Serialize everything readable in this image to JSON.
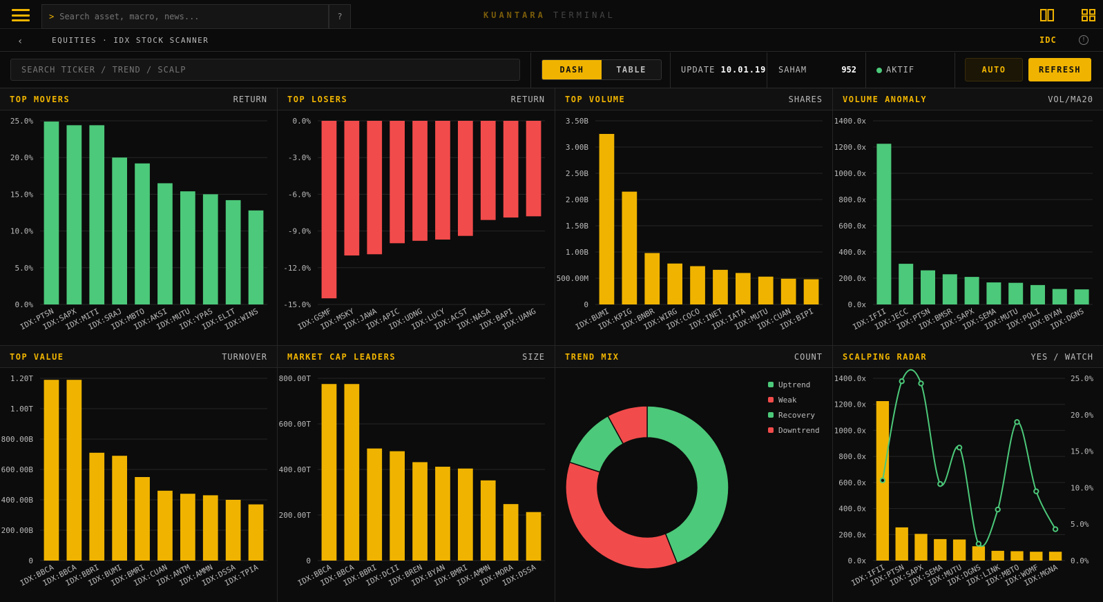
{
  "topbar": {
    "search_prompt": ">",
    "search_placeholder": "Search asset, macro, news...",
    "help_label": "?",
    "brand_primary": "KUANTARA",
    "brand_secondary": "TERMINAL"
  },
  "breadcrumb": {
    "back": "‹",
    "path": "EQUITIES · IDX STOCK SCANNER",
    "region": "IDC",
    "info": "!"
  },
  "controls": {
    "search_placeholder": "SEARCH TICKER / TREND / SCALP",
    "view_tabs": [
      "DASH",
      "TABLE"
    ],
    "update_label": "UPDATE",
    "update_value": "10.01.19",
    "saham_label": "SAHAM",
    "saham_value": "952",
    "status_label": "AKTIF",
    "auto_label": "AUTO",
    "refresh_label": "REFRESH"
  },
  "colors": {
    "accent": "#f0b400",
    "up": "#4cc97a",
    "down": "#f24b4b"
  },
  "panels": [
    {
      "title": "TOP MOVERS",
      "tag": "RETURN"
    },
    {
      "title": "TOP LOSERS",
      "tag": "RETURN"
    },
    {
      "title": "TOP VOLUME",
      "tag": "SHARES"
    },
    {
      "title": "VOLUME ANOMALY",
      "tag": "VOL/MA20"
    },
    {
      "title": "TOP VALUE",
      "tag": "TURNOVER"
    },
    {
      "title": "MARKET CAP LEADERS",
      "tag": "SIZE"
    },
    {
      "title": "TREND MIX",
      "tag": "COUNT"
    },
    {
      "title": "SCALPING RADAR",
      "tag": "YES / WATCH"
    }
  ],
  "chart_data": [
    {
      "type": "bar",
      "categories": [
        "IDX:PTSN",
        "IDX:SAPX",
        "IDX:MITI",
        "IDX:SRAJ",
        "IDX:MBTO",
        "IDX:AKSI",
        "IDX:MUTU",
        "IDX:YPAS",
        "IDX:ELIT",
        "IDX:WINS"
      ],
      "values": [
        24.9,
        24.4,
        24.4,
        20.0,
        19.2,
        16.5,
        15.4,
        15.0,
        14.2,
        12.8
      ],
      "ylim": [
        0,
        25
      ],
      "yticks": [
        0,
        5,
        10,
        15,
        20,
        25
      ],
      "ytick_labels": [
        "0.0%",
        "5.0%",
        "10.0%",
        "15.0%",
        "20.0%",
        "25.0%"
      ],
      "color": "#4cc97a"
    },
    {
      "type": "bar",
      "categories": [
        "IDX:GSMF",
        "IDX:MSKY",
        "IDX:JAWA",
        "IDX:APIC",
        "IDX:UDNG",
        "IDX:LUCY",
        "IDX:ACST",
        "IDX:NASA",
        "IDX:BAPI",
        "IDX:UANG"
      ],
      "values": [
        -14.5,
        -11.0,
        -10.9,
        -10.0,
        -9.8,
        -9.7,
        -9.4,
        -8.1,
        -7.9,
        -7.8
      ],
      "ylim": [
        -15,
        0
      ],
      "yticks": [
        0,
        -3,
        -6,
        -9,
        -12,
        -15
      ],
      "ytick_labels": [
        "0.0%",
        "-3.0%",
        "-6.0%",
        "-9.0%",
        "-12.0%",
        "-15.0%"
      ],
      "color": "#f24b4b"
    },
    {
      "type": "bar",
      "categories": [
        "IDX:BUMI",
        "IDX:KPIG",
        "IDX:BNBR",
        "IDX:WIRG",
        "IDX:COCO",
        "IDX:INET",
        "IDX:IATA",
        "IDX:MUTU",
        "IDX:CUAN",
        "IDX:BIPI"
      ],
      "values": [
        3.25,
        2.15,
        0.98,
        0.78,
        0.73,
        0.66,
        0.6,
        0.53,
        0.49,
        0.48
      ],
      "ylim": [
        0,
        3.5
      ],
      "yticks": [
        0,
        0.5,
        1,
        1.5,
        2,
        2.5,
        3,
        3.5
      ],
      "ytick_labels": [
        "0",
        "500.00M",
        "1.00B",
        "1.50B",
        "2.00B",
        "2.50B",
        "3.00B",
        "3.50B"
      ],
      "color": "#f0b400"
    },
    {
      "type": "bar",
      "categories": [
        "IDX:IFII",
        "IDX:JECC",
        "IDX:PTSN",
        "IDX:BMSR",
        "IDX:SAPX",
        "IDX:SEMA",
        "IDX:MUTU",
        "IDX:POLI",
        "IDX:BYAN",
        "IDX:DGNS"
      ],
      "values": [
        1225,
        310,
        260,
        230,
        210,
        168,
        165,
        148,
        118,
        115
      ],
      "ylim": [
        0,
        1400
      ],
      "yticks": [
        0,
        200,
        400,
        600,
        800,
        1000,
        1200,
        1400
      ],
      "ytick_labels": [
        "0.0x",
        "200.0x",
        "400.0x",
        "600.0x",
        "800.0x",
        "1000.0x",
        "1200.0x",
        "1400.0x"
      ],
      "color": "#4cc97a"
    },
    {
      "type": "bar",
      "categories": [
        "IDX:BBCA",
        "IDX:BBCA",
        "IDX:BBRI",
        "IDX:BUMI",
        "IDX:BMRI",
        "IDX:CUAN",
        "IDX:ANTM",
        "IDX:AMMN",
        "IDX:DSSA",
        "IDX:TPIA"
      ],
      "values": [
        1.19,
        1.19,
        0.71,
        0.69,
        0.55,
        0.46,
        0.44,
        0.43,
        0.4,
        0.37
      ],
      "ylim": [
        0,
        1.2
      ],
      "yticks": [
        0,
        0.2,
        0.4,
        0.6,
        0.8,
        1.0,
        1.2
      ],
      "ytick_labels": [
        "0",
        "200.00B",
        "400.00B",
        "600.00B",
        "800.00B",
        "1.00T",
        "1.20T"
      ],
      "color": "#f0b400"
    },
    {
      "type": "bar",
      "categories": [
        "IDX:BBCA",
        "IDX:BBCA",
        "IDX:BBRI",
        "IDX:DCII",
        "IDX:BREN",
        "IDX:BYAN",
        "IDX:BMRI",
        "IDX:AMMN",
        "IDX:MORA",
        "IDX:DSSA"
      ],
      "values": [
        775,
        775,
        492,
        480,
        432,
        412,
        404,
        352,
        248,
        213
      ],
      "ylim": [
        0,
        800
      ],
      "yticks": [
        0,
        200,
        400,
        600,
        800
      ],
      "ytick_labels": [
        "0",
        "200.00T",
        "400.00T",
        "600.00T",
        "800.00T"
      ],
      "color": "#f0b400"
    },
    {
      "type": "pie",
      "labels": [
        "Uptrend",
        "Weak",
        "Recovery",
        "Downtrend"
      ],
      "values": [
        44,
        36,
        12,
        8
      ],
      "colors": [
        "#4cc97a",
        "#f24b4b",
        "#4cc97a",
        "#f24b4b"
      ],
      "legend": "top-right"
    },
    {
      "type": "bar",
      "categories": [
        "IDX:IFII",
        "IDX:PTSN",
        "IDX:SAPX",
        "IDX:SEMA",
        "IDX:MUTU",
        "IDX:DGNS",
        "IDX:LINK",
        "IDX:MBTO",
        "IDX:WOMF",
        "IDX:MGNA"
      ],
      "values": [
        1225,
        255,
        205,
        165,
        162,
        110,
        75,
        72,
        68,
        68
      ],
      "ylim": [
        0,
        1400
      ],
      "yticks": [
        0,
        200,
        400,
        600,
        800,
        1000,
        1200,
        1400
      ],
      "ytick_labels": [
        "0.0x",
        "200.0x",
        "400.0x",
        "600.0x",
        "800.0x",
        "1000.0x",
        "1200.0x",
        "1400.0x"
      ],
      "color": "#f0b400",
      "line_series": {
        "values": [
          11.0,
          24.6,
          24.3,
          10.5,
          15.5,
          2.3,
          7.0,
          19.0,
          9.5,
          4.3
        ],
        "ylim": [
          0,
          25
        ],
        "yticks": [
          0,
          5,
          10,
          15,
          20,
          25
        ],
        "ytick_labels": [
          "0.0%",
          "5.0%",
          "10.0%",
          "15.0%",
          "20.0%",
          "25.0%"
        ],
        "color": "#4cc97a"
      }
    }
  ]
}
